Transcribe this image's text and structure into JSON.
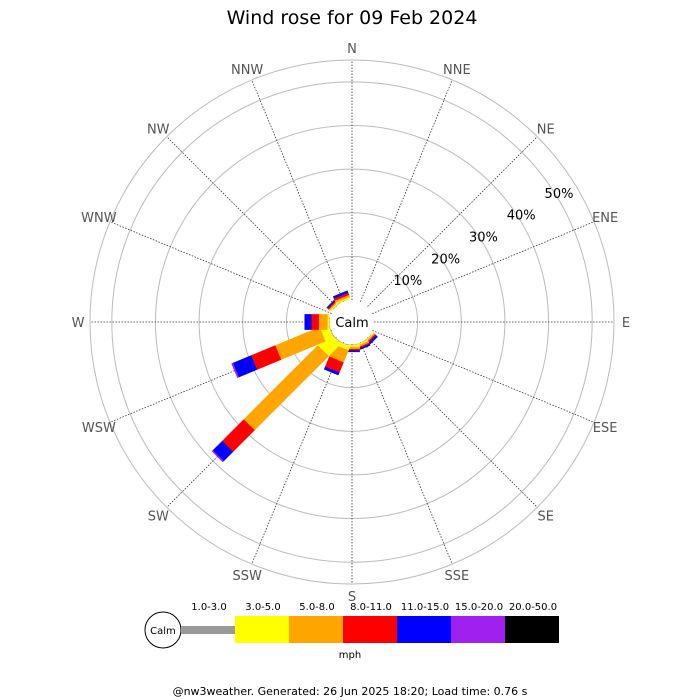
{
  "chart_data": {
    "type": "windrose",
    "title": "Wind rose for 09 Feb 2024",
    "directions": [
      "N",
      "NNE",
      "NE",
      "ENE",
      "E",
      "ESE",
      "SE",
      "SSE",
      "S",
      "SSW",
      "SW",
      "WSW",
      "W",
      "WNW",
      "NW",
      "NNW"
    ],
    "ring_labels": [
      "10%",
      "20%",
      "30%",
      "40%",
      "50%"
    ],
    "ring_values": [
      10,
      20,
      30,
      40,
      50
    ],
    "r_max": 55,
    "calm_label": "Calm",
    "unit": "mph",
    "bins": [
      {
        "label": "1.0-3.0",
        "color": "#999999"
      },
      {
        "label": "3.0-5.0",
        "color": "#ffff00"
      },
      {
        "label": "5.0-8.0",
        "color": "#ffa500"
      },
      {
        "label": "8.0-11.0",
        "color": "#ff0000"
      },
      {
        "label": "11.0-15.0",
        "color": "#0000ff"
      },
      {
        "label": "15.0-20.0",
        "color": "#a020f0"
      },
      {
        "label": "20.0-50.0",
        "color": "#000000"
      }
    ],
    "series": [
      {
        "direction": "N",
        "values": [
          0,
          0,
          0,
          0,
          0,
          0,
          0
        ]
      },
      {
        "direction": "NNE",
        "values": [
          0,
          0,
          0,
          0,
          0,
          0,
          0
        ]
      },
      {
        "direction": "NE",
        "values": [
          0,
          0,
          0,
          0,
          0,
          0,
          0
        ]
      },
      {
        "direction": "ENE",
        "values": [
          0,
          0,
          0,
          0,
          0,
          0,
          0
        ]
      },
      {
        "direction": "E",
        "values": [
          0,
          0,
          0,
          0,
          0,
          0,
          0
        ]
      },
      {
        "direction": "ESE",
        "values": [
          0,
          0,
          0,
          0,
          0,
          0,
          0
        ]
      },
      {
        "direction": "SE",
        "values": [
          0.2,
          0.2,
          0.3,
          0.3,
          0.5,
          0,
          0
        ]
      },
      {
        "direction": "SSE",
        "values": [
          0.2,
          0.3,
          0.4,
          0.3,
          0.3,
          0,
          0
        ]
      },
      {
        "direction": "S",
        "values": [
          0.3,
          0.4,
          0.5,
          0.3,
          0.3,
          0,
          0
        ]
      },
      {
        "direction": "SSW",
        "values": [
          0.3,
          1.0,
          3.0,
          2.5,
          0.6,
          0,
          0
        ]
      },
      {
        "direction": "SW",
        "values": [
          0.3,
          4.0,
          24.0,
          7.0,
          3.0,
          0.3,
          0
        ]
      },
      {
        "direction": "WSW",
        "values": [
          0.3,
          2.0,
          11.0,
          6.0,
          4.5,
          0.3,
          0
        ]
      },
      {
        "direction": "W",
        "values": [
          0.2,
          0.4,
          2.0,
          1.7,
          1.5,
          0,
          0
        ]
      },
      {
        "direction": "WNW",
        "values": [
          0,
          0,
          0,
          0,
          0,
          0,
          0
        ]
      },
      {
        "direction": "NW",
        "values": [
          0.2,
          0.3,
          0.3,
          0.3,
          0.3,
          0,
          0
        ]
      },
      {
        "direction": "NNW",
        "values": [
          0.2,
          0.3,
          0.5,
          0.5,
          0.5,
          0,
          0
        ]
      }
    ]
  },
  "footer": {
    "text": "@nw3weather. Generated: 26 Jun 2025 18:20; Load time: 0.76 s"
  }
}
